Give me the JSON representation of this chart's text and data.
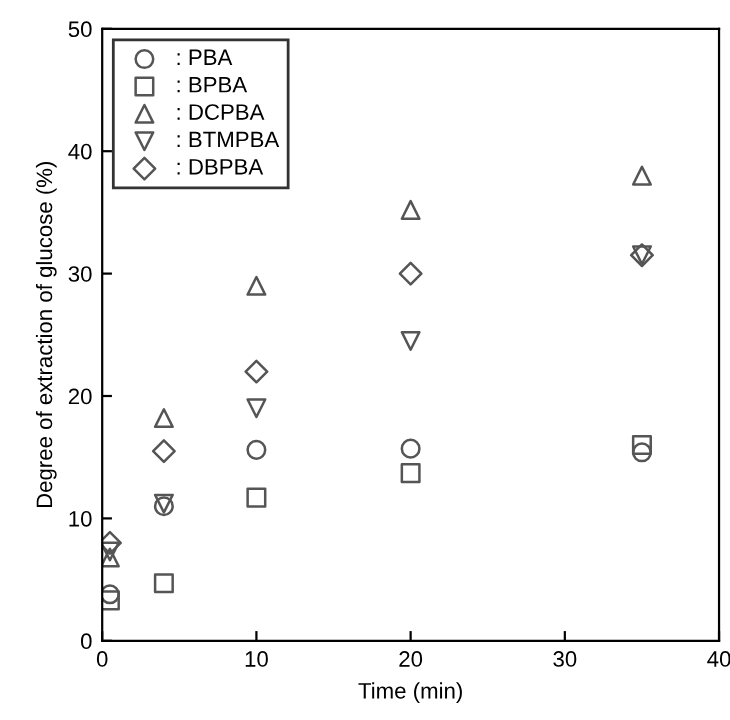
{
  "chart_data": {
    "type": "scatter",
    "xlabel": "Time (min)",
    "ylabel": "Degree of extraction of glucose (%)",
    "x": [
      0.5,
      4,
      10,
      20,
      35
    ],
    "xlim": [
      0,
      40
    ],
    "xticks": [
      0,
      10,
      20,
      30,
      40
    ],
    "ylim": [
      0,
      50
    ],
    "yticks": [
      0,
      10,
      20,
      30,
      40,
      50
    ],
    "grid": false,
    "legend": "top left",
    "series": [
      {
        "name": ": PBA",
        "color": "#555555",
        "marker": "circle",
        "values": [
          3.8,
          11,
          15.6,
          15.7,
          15.4
        ]
      },
      {
        "name": ": BPBA",
        "color": "#555555",
        "marker": "square",
        "values": [
          3.3,
          4.7,
          11.7,
          13.7,
          16
        ]
      },
      {
        "name": ": DCPBA",
        "color": "#555555",
        "marker": "triangle",
        "values": [
          6.8,
          18.2,
          29,
          35.2,
          38
        ]
      },
      {
        "name": ": BTMPBA",
        "color": "#555555",
        "marker": "triangle_down",
        "values": [
          7.3,
          11.2,
          19,
          24.5,
          31.5
        ]
      },
      {
        "name": ": DBPBA",
        "color": "#555555",
        "marker": "diamond",
        "values": [
          8,
          15.5,
          22,
          30,
          31.5
        ]
      }
    ]
  }
}
